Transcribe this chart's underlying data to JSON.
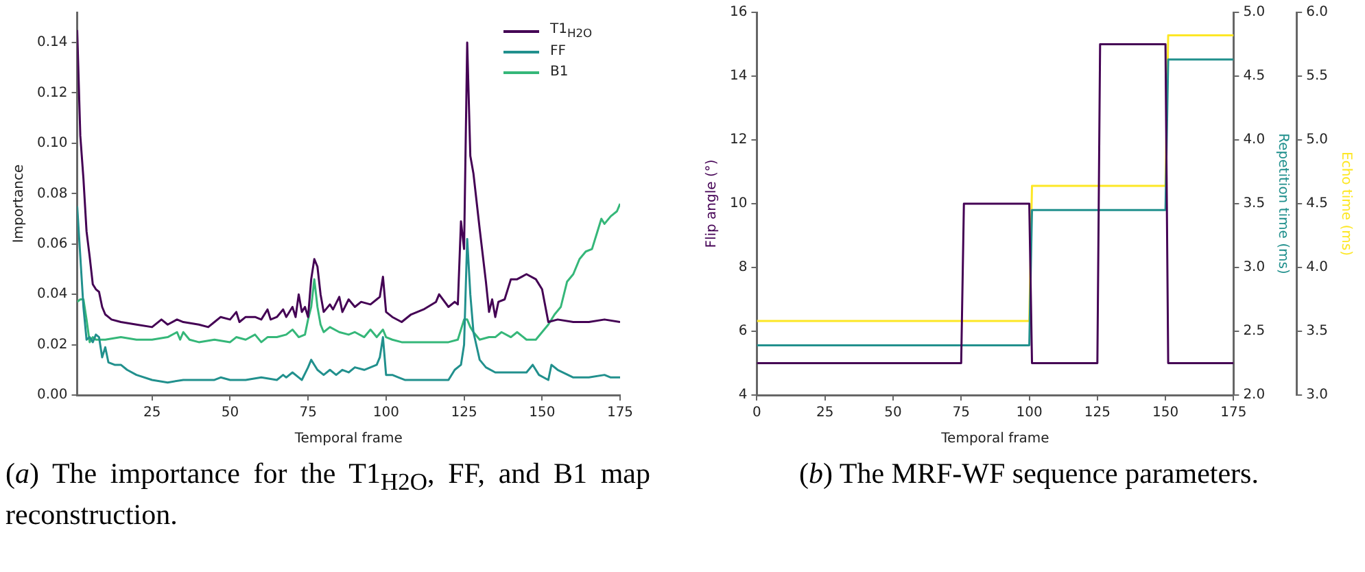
{
  "chart_data": [
    {
      "type": "line",
      "title": "(a) The importance for the T1$_{H2O}$, FF, and B1 map reconstruction.",
      "xlabel": "Temporal frame",
      "ylabel": "Importance",
      "xlim": [
        1,
        175
      ],
      "xticks": [
        25,
        50,
        75,
        100,
        125,
        150,
        175
      ],
      "ylim": [
        0,
        0.152
      ],
      "yticks": [
        {
          "value": 0,
          "label": "0.00"
        },
        {
          "value": 0.02,
          "label": "0.02"
        },
        {
          "value": 0.04,
          "label": "0.04"
        },
        {
          "value": 0.06,
          "label": "0.06"
        },
        {
          "value": 0.08,
          "label": "0.08"
        },
        {
          "value": 0.1,
          "label": "0.10"
        },
        {
          "value": 0.12,
          "label": "0.12"
        },
        {
          "value": 0.14,
          "label": "0.14"
        }
      ],
      "grid": false,
      "legend": "top right",
      "series": [
        {
          "name": "T1$_{H2O}$",
          "color": "#440154",
          "x": [
            1,
            2,
            3,
            4,
            5,
            6,
            7,
            8,
            9,
            10,
            11,
            12,
            15,
            20,
            25,
            28,
            30,
            33,
            35,
            40,
            43,
            45,
            47,
            50,
            52,
            53,
            55,
            58,
            60,
            62,
            63,
            65,
            67,
            68,
            70,
            71,
            72,
            73,
            74,
            75,
            76,
            77,
            78,
            79,
            80,
            82,
            83,
            85,
            86,
            88,
            90,
            92,
            95,
            97,
            98,
            99,
            100,
            102,
            105,
            108,
            112,
            116,
            117,
            120,
            122,
            123,
            124,
            125,
            126,
            127,
            128,
            130,
            132,
            133,
            134,
            135,
            136,
            138,
            140,
            142,
            145,
            148,
            150,
            152,
            155,
            160,
            165,
            170,
            175
          ],
          "values": [
            0.145,
            0.103,
            0.086,
            0.065,
            0.055,
            0.044,
            0.042,
            0.041,
            0.035,
            0.032,
            0.031,
            0.03,
            0.029,
            0.028,
            0.027,
            0.03,
            0.028,
            0.03,
            0.029,
            0.028,
            0.027,
            0.029,
            0.031,
            0.03,
            0.033,
            0.029,
            0.031,
            0.031,
            0.03,
            0.034,
            0.03,
            0.031,
            0.034,
            0.031,
            0.035,
            0.031,
            0.04,
            0.033,
            0.035,
            0.031,
            0.046,
            0.054,
            0.051,
            0.04,
            0.033,
            0.036,
            0.034,
            0.039,
            0.033,
            0.038,
            0.035,
            0.037,
            0.036,
            0.038,
            0.039,
            0.047,
            0.033,
            0.031,
            0.029,
            0.032,
            0.034,
            0.037,
            0.04,
            0.035,
            0.037,
            0.036,
            0.069,
            0.058,
            0.14,
            0.095,
            0.088,
            0.066,
            0.045,
            0.033,
            0.038,
            0.031,
            0.037,
            0.038,
            0.046,
            0.046,
            0.048,
            0.046,
            0.042,
            0.029,
            0.03,
            0.029,
            0.029,
            0.03,
            0.029
          ]
        },
        {
          "name": "FF",
          "color": "#21908d",
          "x": [
            1,
            2,
            3,
            4,
            5,
            6,
            7,
            8,
            9,
            10,
            11,
            13,
            15,
            17,
            20,
            25,
            30,
            35,
            40,
            45,
            47,
            50,
            55,
            60,
            65,
            67,
            68,
            70,
            72,
            73,
            75,
            76,
            77,
            78,
            80,
            82,
            84,
            86,
            88,
            90,
            93,
            95,
            97,
            98,
            99,
            100,
            102,
            104,
            106,
            110,
            115,
            120,
            122,
            124,
            125,
            126,
            127,
            128,
            130,
            132,
            135,
            140,
            145,
            147,
            149,
            152,
            153,
            155,
            160,
            165,
            170,
            172,
            175
          ],
          "values": [
            0.075,
            0.055,
            0.035,
            0.022,
            0.023,
            0.021,
            0.024,
            0.023,
            0.015,
            0.019,
            0.013,
            0.012,
            0.012,
            0.01,
            0.008,
            0.006,
            0.005,
            0.006,
            0.006,
            0.006,
            0.007,
            0.006,
            0.006,
            0.007,
            0.006,
            0.008,
            0.007,
            0.009,
            0.007,
            0.006,
            0.011,
            0.014,
            0.012,
            0.01,
            0.008,
            0.01,
            0.008,
            0.01,
            0.009,
            0.011,
            0.01,
            0.011,
            0.012,
            0.015,
            0.023,
            0.008,
            0.008,
            0.007,
            0.006,
            0.006,
            0.006,
            0.006,
            0.01,
            0.012,
            0.02,
            0.062,
            0.04,
            0.025,
            0.014,
            0.011,
            0.009,
            0.009,
            0.009,
            0.012,
            0.008,
            0.006,
            0.012,
            0.01,
            0.007,
            0.007,
            0.008,
            0.007,
            0.007
          ]
        },
        {
          "name": "B1",
          "color": "#35b779",
          "x": [
            1,
            2,
            3,
            4,
            5,
            6,
            7,
            10,
            15,
            20,
            25,
            30,
            33,
            34,
            35,
            37,
            40,
            45,
            50,
            52,
            55,
            58,
            60,
            62,
            65,
            68,
            70,
            72,
            74,
            75,
            76,
            77,
            78,
            79,
            80,
            82,
            85,
            88,
            90,
            93,
            95,
            97,
            99,
            100,
            102,
            105,
            110,
            120,
            123,
            125,
            126,
            127,
            128,
            130,
            133,
            135,
            137,
            140,
            142,
            145,
            148,
            150,
            152,
            154,
            156,
            158,
            160,
            162,
            164,
            166,
            168,
            169,
            170,
            172,
            174,
            175
          ],
          "values": [
            0.037,
            0.038,
            0.038,
            0.03,
            0.021,
            0.023,
            0.022,
            0.022,
            0.023,
            0.022,
            0.022,
            0.023,
            0.025,
            0.022,
            0.025,
            0.022,
            0.021,
            0.022,
            0.021,
            0.023,
            0.022,
            0.024,
            0.021,
            0.023,
            0.023,
            0.024,
            0.026,
            0.023,
            0.024,
            0.03,
            0.035,
            0.046,
            0.035,
            0.028,
            0.025,
            0.027,
            0.025,
            0.024,
            0.025,
            0.023,
            0.026,
            0.023,
            0.026,
            0.023,
            0.022,
            0.021,
            0.021,
            0.021,
            0.022,
            0.03,
            0.03,
            0.027,
            0.025,
            0.022,
            0.023,
            0.023,
            0.025,
            0.023,
            0.025,
            0.022,
            0.022,
            0.025,
            0.028,
            0.032,
            0.035,
            0.045,
            0.048,
            0.054,
            0.057,
            0.058,
            0.066,
            0.07,
            0.068,
            0.071,
            0.073,
            0.076
          ]
        }
      ]
    },
    {
      "type": "line",
      "title": "(b) The MRF-WF sequence parameters.",
      "xlabel": "Temporal frame",
      "ylabel": "Flip angle (°)",
      "y2label": "Repetition time (ms)",
      "y3label": "Echo time (ms)",
      "xlim": [
        0,
        175
      ],
      "xticks": [
        0,
        25,
        50,
        75,
        100,
        125,
        150,
        175
      ],
      "ylim": [
        4,
        16
      ],
      "yticks": [
        4,
        6,
        8,
        10,
        12,
        14,
        16
      ],
      "y2lim": [
        2,
        5
      ],
      "y2ticks": [
        {
          "value": 2,
          "label": "2.0"
        },
        2.5,
        {
          "value": 3,
          "label": "3.0"
        },
        3.5,
        {
          "value": 4,
          "label": "4.0"
        },
        4.5,
        {
          "value": 5,
          "label": "5.0"
        }
      ],
      "y3lim": [
        3,
        6
      ],
      "y3ticks": [
        {
          "value": 3,
          "label": "3.0"
        },
        3.5,
        {
          "value": 4,
          "label": "4.0"
        },
        4.5,
        {
          "value": 5,
          "label": "5.0"
        },
        5.5,
        {
          "value": 6,
          "label": "6.0"
        }
      ],
      "grid": false,
      "legend": false,
      "series": [
        {
          "color": "#440154",
          "x": [
            0,
            75,
            76,
            100,
            101,
            125,
            126,
            150,
            151,
            175
          ],
          "values": [
            5,
            5,
            10,
            10,
            5,
            5,
            15,
            15,
            5,
            5
          ]
        },
        {
          "color": "#21908d",
          "axis": "y2",
          "x": [
            0,
            100,
            101,
            150,
            151,
            175
          ],
          "values": [
            2.39,
            2.39,
            3.45,
            3.45,
            4.63,
            4.63
          ]
        },
        {
          "color": "#fde725",
          "axis": "y3",
          "x": [
            0,
            100,
            101,
            150,
            151,
            175
          ],
          "values": [
            3.58,
            3.58,
            4.64,
            4.64,
            5.82,
            5.82
          ]
        }
      ]
    }
  ]
}
